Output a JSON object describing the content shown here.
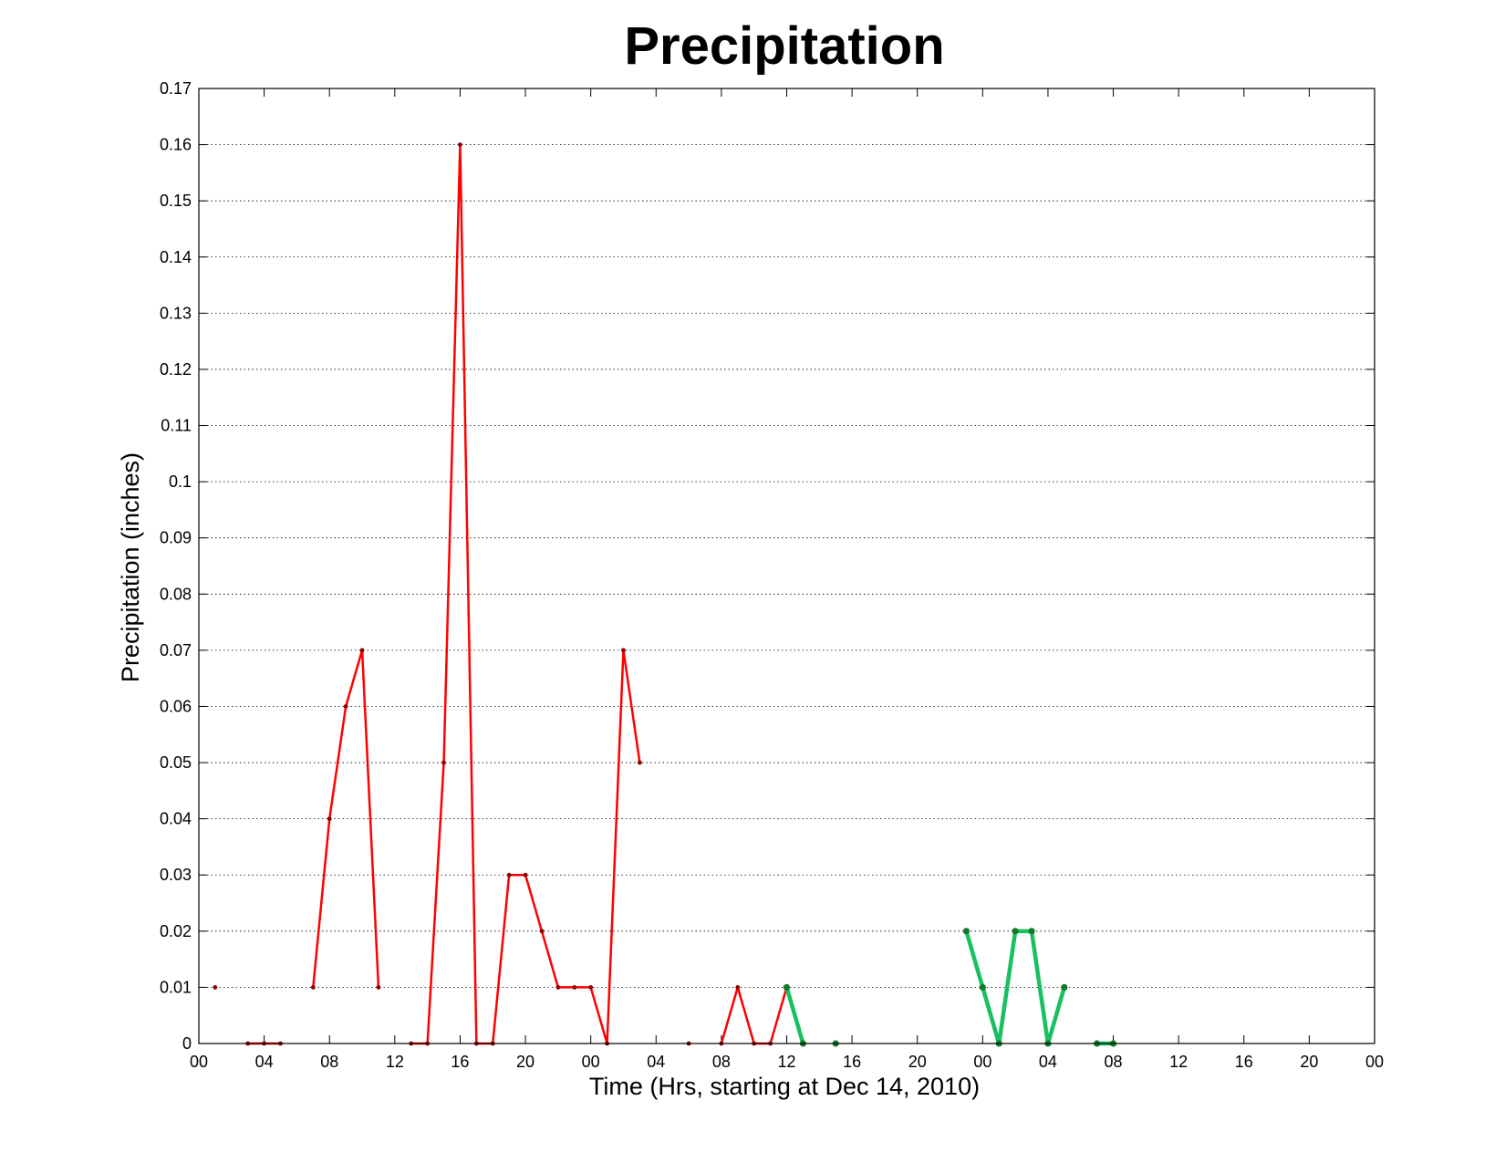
{
  "chart_data": {
    "type": "line",
    "title": "Precipitation",
    "xlabel": "Time (Hrs, starting at Dec 14, 2010)",
    "ylabel": "Precipitation (inches)",
    "xlim": [
      0,
      72
    ],
    "ylim": [
      0,
      0.17
    ],
    "grid": "y-major dotted",
    "x_tick_values": [
      0,
      4,
      8,
      12,
      16,
      20,
      24,
      28,
      32,
      36,
      40,
      44,
      48,
      52,
      56,
      60,
      64,
      68,
      72
    ],
    "x_tick_labels": [
      "00",
      "04",
      "08",
      "12",
      "16",
      "20",
      "00",
      "04",
      "08",
      "12",
      "16",
      "20",
      "00",
      "04",
      "08",
      "12",
      "16",
      "20",
      "00"
    ],
    "y_tick_values": [
      0,
      0.01,
      0.02,
      0.03,
      0.04,
      0.05,
      0.06,
      0.07,
      0.08,
      0.09,
      0.1,
      0.11,
      0.12,
      0.13,
      0.14,
      0.15,
      0.16,
      0.17
    ],
    "y_tick_labels": [
      "0",
      "0.01",
      "0.02",
      "0.03",
      "0.04",
      "0.05",
      "0.06",
      "0.07",
      "0.08",
      "0.09",
      "0.1",
      "0.11",
      "0.12",
      "0.13",
      "0.14",
      "0.15",
      "0.16",
      "0.17"
    ],
    "series": [
      {
        "color": "#ff0000",
        "marker_color": "#8b0000",
        "style": "thin",
        "segments": [
          [
            [
              1,
              0.01
            ]
          ],
          [
            [
              3,
              0
            ],
            [
              4,
              0
            ],
            [
              5,
              0
            ]
          ],
          [
            [
              7,
              0.01
            ],
            [
              8,
              0.04
            ],
            [
              9,
              0.06
            ],
            [
              10,
              0.07
            ],
            [
              11,
              0.01
            ]
          ],
          [
            [
              13,
              0
            ],
            [
              14,
              0
            ],
            [
              15,
              0.05
            ],
            [
              16,
              0.16
            ],
            [
              17,
              0
            ],
            [
              18,
              0
            ],
            [
              19,
              0.03
            ],
            [
              20,
              0.03
            ],
            [
              21,
              0.02
            ],
            [
              22,
              0.01
            ],
            [
              23,
              0.01
            ],
            [
              24,
              0.01
            ],
            [
              25,
              0
            ],
            [
              26,
              0.07
            ],
            [
              27,
              0.05
            ]
          ],
          [
            [
              30,
              0
            ]
          ],
          [
            [
              32,
              0
            ],
            [
              33,
              0.01
            ],
            [
              34,
              0
            ],
            [
              35,
              0
            ],
            [
              36,
              0.01
            ]
          ]
        ]
      },
      {
        "color": "#18c060",
        "marker_color": "#117a2c",
        "style": "thick",
        "segments": [
          [
            [
              36,
              0.01
            ],
            [
              37,
              0
            ]
          ],
          [
            [
              39,
              0
            ]
          ],
          [
            [
              47,
              0.02
            ],
            [
              48,
              0.01
            ],
            [
              49,
              0
            ],
            [
              50,
              0.02
            ],
            [
              51,
              0.02
            ],
            [
              52,
              0
            ],
            [
              53,
              0.01
            ]
          ],
          [
            [
              55,
              0
            ],
            [
              56,
              0
            ]
          ]
        ]
      }
    ]
  }
}
